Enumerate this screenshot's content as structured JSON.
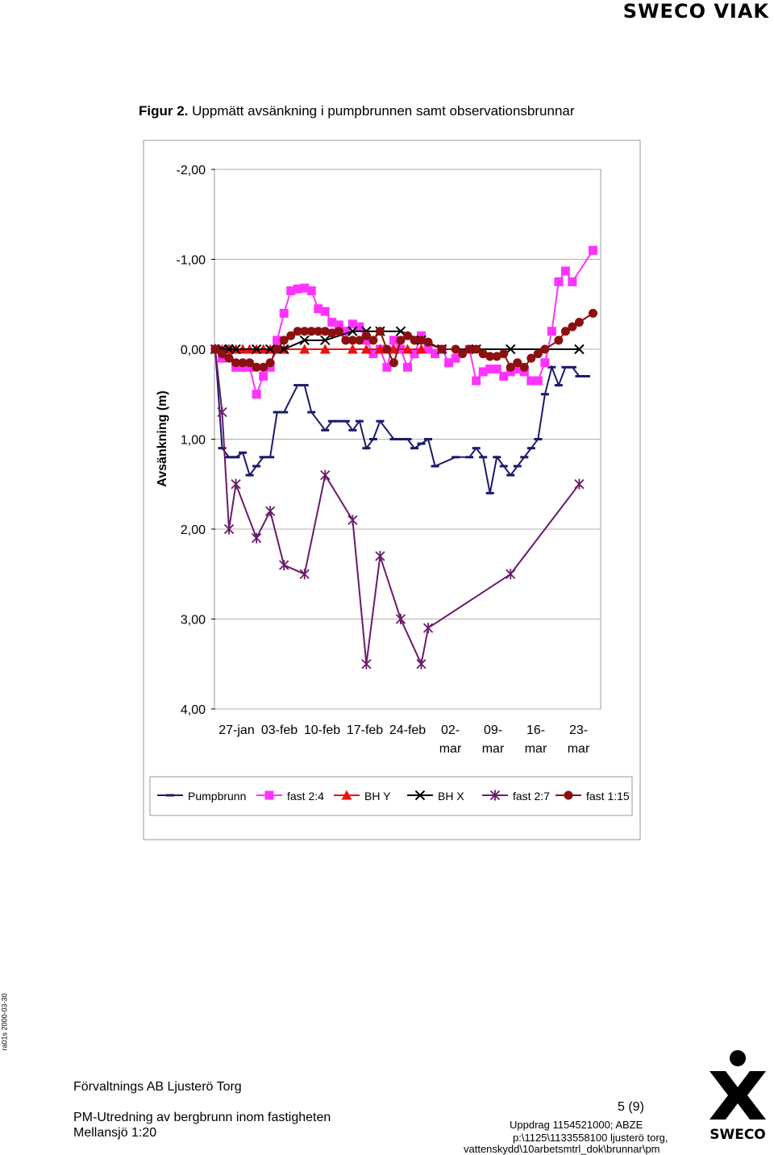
{
  "header": {
    "brand": "SWECO VIAK"
  },
  "figure": {
    "label": "Figur 2.",
    "caption": "Uppmätt avsänkning i pumpbrunnen samt observationsbrunnar"
  },
  "side_code": "ra01s 2000-03-30",
  "footer": {
    "company": "Förvaltnings AB Ljusterö Torg",
    "report": "PM-Utredning av bergbrunn inom fastigheten",
    "property": "Mellansjö 1:20",
    "page": "5 (9)",
    "assignment": "Uppdrag 1154521000; ABZE",
    "path1": "p:\\1125\\1133558100 ljusterö torg,",
    "path2": "vattenskydd\\10arbetsmtrl_dok\\brunnar\\pm"
  },
  "logo": {
    "text": "SWECO"
  },
  "colors": {
    "Pumpbrunn": "#1a1a6e",
    "fast 2:4": "#ff33ff",
    "BH Y": "#ee1111",
    "BH X": "#000000",
    "fast 2:7": "#6a1a6a",
    "fast 1:15": "#8b1010"
  },
  "chart_data": {
    "type": "line",
    "ylabel": "Avsänkning (m)",
    "y_inverted": true,
    "ylim": [
      -2.0,
      4.0
    ],
    "ytick_labels": [
      "-2,00",
      "-1,00",
      "0,00",
      "1,00",
      "2,00",
      "3,00",
      "4,00"
    ],
    "yticks": [
      -2,
      -1,
      0,
      1,
      2,
      3,
      4
    ],
    "x_unit": "days from 27-jan",
    "xlim": [
      0,
      56
    ],
    "xtick_labels": [
      [
        "27-jan"
      ],
      [
        "03-feb"
      ],
      [
        "10-feb"
      ],
      [
        "17-feb"
      ],
      [
        "24-feb"
      ],
      [
        "02-",
        "mar"
      ],
      [
        "09-",
        "mar"
      ],
      [
        "16-",
        "mar"
      ],
      [
        "23-",
        "mar"
      ]
    ],
    "legend_position": "bottom",
    "series": [
      {
        "name": "Pumpbrunn",
        "marker": "dash",
        "x": [
          0,
          1,
          2,
          3,
          4,
          5,
          6,
          7,
          8,
          9,
          10,
          12,
          13,
          14,
          16,
          17,
          18,
          19,
          20,
          21,
          22,
          23,
          24,
          26,
          27,
          28,
          29,
          30,
          31,
          32,
          35,
          37,
          38,
          39,
          40,
          41,
          42,
          43,
          44,
          45,
          46,
          47,
          48,
          49,
          50,
          51,
          52,
          53,
          54
        ],
        "y": [
          0.0,
          1.1,
          1.2,
          1.2,
          1.15,
          1.4,
          1.3,
          1.2,
          1.2,
          0.7,
          0.7,
          0.4,
          0.4,
          0.7,
          0.9,
          0.8,
          0.8,
          0.8,
          0.9,
          0.8,
          1.1,
          1.0,
          0.8,
          1.0,
          1.0,
          1.0,
          1.1,
          1.05,
          1.0,
          1.3,
          1.2,
          1.2,
          1.1,
          1.2,
          1.6,
          1.2,
          1.3,
          1.4,
          1.3,
          1.2,
          1.1,
          1.0,
          0.5,
          0.2,
          0.4,
          0.2,
          0.2,
          0.3,
          0.3
        ]
      },
      {
        "name": "fast 2:4",
        "marker": "square",
        "x": [
          0,
          1,
          2,
          3,
          4,
          5,
          6,
          7,
          8,
          9,
          10,
          11,
          12,
          13,
          14,
          15,
          16,
          17,
          18,
          19,
          20,
          21,
          22,
          23,
          24,
          25,
          26,
          27,
          28,
          29,
          30,
          31,
          32,
          33,
          34,
          35,
          37,
          38,
          39,
          40,
          41,
          42,
          43,
          44,
          45,
          46,
          47,
          48,
          49,
          50,
          51,
          52,
          55
        ],
        "y": [
          0.0,
          0.1,
          0.0,
          0.2,
          0.2,
          0.2,
          0.5,
          0.3,
          0.2,
          -0.1,
          -0.4,
          -0.65,
          -0.67,
          -0.68,
          -0.65,
          -0.45,
          -0.42,
          -0.3,
          -0.27,
          -0.2,
          -0.28,
          -0.25,
          -0.1,
          0.05,
          0.0,
          0.2,
          -0.1,
          0.0,
          0.2,
          0.05,
          -0.15,
          0.0,
          0.05,
          0.0,
          0.15,
          0.1,
          0.0,
          0.35,
          0.25,
          0.22,
          0.22,
          0.3,
          0.25,
          0.22,
          0.25,
          0.35,
          0.35,
          0.15,
          -0.2,
          -0.75,
          -0.87,
          -0.75,
          -1.1
        ]
      },
      {
        "name": "BH Y",
        "marker": "triangle",
        "x": [
          0,
          1,
          2,
          3,
          4,
          5,
          6,
          7,
          8,
          9,
          10,
          13,
          16,
          20,
          22,
          24,
          26,
          28,
          30
        ],
        "y": [
          0.0,
          0.0,
          0.0,
          0.0,
          0.0,
          0.0,
          0.0,
          0.0,
          0.0,
          0.0,
          0.0,
          0.0,
          0.0,
          0.0,
          0.0,
          0.0,
          0.0,
          0.0,
          0.0
        ]
      },
      {
        "name": "BH X",
        "marker": "x",
        "x": [
          0,
          1,
          2,
          3,
          6,
          8,
          10,
          13,
          16,
          20,
          22,
          24,
          27,
          30,
          33,
          38,
          43,
          53
        ],
        "y": [
          0.0,
          0.0,
          0.0,
          0.0,
          0.0,
          0.0,
          0.0,
          -0.1,
          -0.1,
          -0.2,
          -0.2,
          -0.2,
          -0.2,
          -0.1,
          0.0,
          0.0,
          0.0,
          0.0
        ]
      },
      {
        "name": "fast 2:7",
        "marker": "star",
        "x": [
          0,
          1,
          2,
          3,
          6,
          8,
          10,
          13,
          16,
          20,
          22,
          24,
          27,
          30,
          31,
          43,
          53
        ],
        "y": [
          0.0,
          0.7,
          2.0,
          1.5,
          2.1,
          1.8,
          2.4,
          2.5,
          1.4,
          1.9,
          3.5,
          2.3,
          3.0,
          3.5,
          3.1,
          2.5,
          1.5
        ]
      },
      {
        "name": "fast 1:15",
        "marker": "circle",
        "x": [
          0,
          1,
          2,
          3,
          4,
          5,
          6,
          7,
          8,
          9,
          10,
          11,
          12,
          13,
          14,
          15,
          16,
          17,
          18,
          19,
          20,
          21,
          22,
          23,
          24,
          25,
          26,
          27,
          28,
          29,
          30,
          31,
          33,
          35,
          36,
          37,
          38,
          39,
          40,
          41,
          42,
          43,
          44,
          45,
          46,
          47,
          48,
          50,
          51,
          52,
          53,
          55
        ],
        "y": [
          0.0,
          0.05,
          0.1,
          0.15,
          0.15,
          0.15,
          0.2,
          0.2,
          0.15,
          0.0,
          -0.1,
          -0.15,
          -0.2,
          -0.2,
          -0.2,
          -0.2,
          -0.2,
          -0.18,
          -0.2,
          -0.1,
          -0.1,
          -0.1,
          -0.15,
          -0.1,
          -0.2,
          0.0,
          0.15,
          -0.1,
          -0.15,
          -0.1,
          -0.1,
          -0.08,
          0.0,
          0.0,
          0.05,
          0.0,
          0.0,
          0.05,
          0.08,
          0.08,
          0.05,
          0.2,
          0.15,
          0.2,
          0.1,
          0.05,
          0.0,
          -0.1,
          -0.2,
          -0.25,
          -0.3,
          -0.4
        ]
      }
    ]
  }
}
